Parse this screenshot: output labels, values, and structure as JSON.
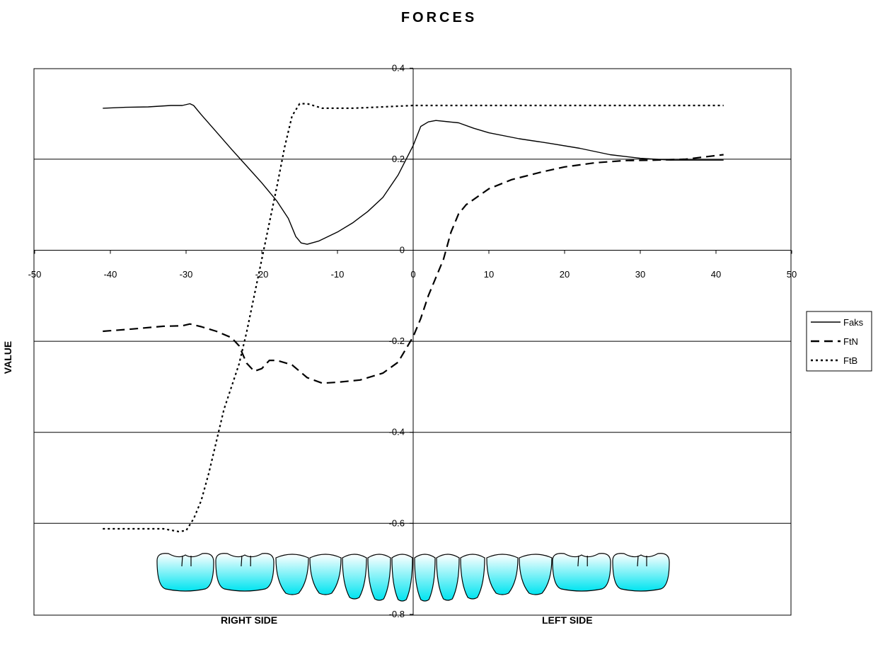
{
  "chart_data": {
    "type": "line",
    "title": "FORCES",
    "ylabel": "VALUE",
    "xlabel_left": "RIGHT SIDE",
    "xlabel_right": "LEFT SIDE",
    "xlim": [
      -50,
      50
    ],
    "ylim": [
      -0.8,
      0.4
    ],
    "xticks": [
      -50,
      -40,
      -30,
      -20,
      -10,
      0,
      10,
      20,
      30,
      40,
      50
    ],
    "yticks": [
      -0.8,
      -0.6,
      -0.4,
      -0.2,
      0,
      0.2,
      0.4
    ],
    "grid": "horizontal",
    "legend_position": "right",
    "series": [
      {
        "name": "Faks",
        "style": "solid",
        "color": "#000000",
        "points": [
          [
            -41,
            0.312
          ],
          [
            -38,
            0.314
          ],
          [
            -35,
            0.315
          ],
          [
            -32,
            0.318
          ],
          [
            -30.5,
            0.318
          ],
          [
            -29.5,
            0.322
          ],
          [
            -29,
            0.318
          ],
          [
            -28,
            0.298
          ],
          [
            -26,
            0.26
          ],
          [
            -24,
            0.222
          ],
          [
            -22,
            0.185
          ],
          [
            -20,
            0.148
          ],
          [
            -18,
            0.108
          ],
          [
            -16.5,
            0.07
          ],
          [
            -15.5,
            0.03
          ],
          [
            -14.8,
            0.016
          ],
          [
            -14,
            0.013
          ],
          [
            -12.5,
            0.02
          ],
          [
            -10,
            0.04
          ],
          [
            -8,
            0.06
          ],
          [
            -6,
            0.085
          ],
          [
            -4,
            0.116
          ],
          [
            -2,
            0.165
          ],
          [
            0,
            0.23
          ],
          [
            1,
            0.272
          ],
          [
            2,
            0.282
          ],
          [
            3,
            0.285
          ],
          [
            6,
            0.28
          ],
          [
            8,
            0.268
          ],
          [
            10,
            0.258
          ],
          [
            14,
            0.245
          ],
          [
            18,
            0.235
          ],
          [
            22,
            0.224
          ],
          [
            26,
            0.21
          ],
          [
            30,
            0.202
          ],
          [
            34,
            0.198
          ],
          [
            38,
            0.198
          ],
          [
            41,
            0.198
          ]
        ]
      },
      {
        "name": "FtN",
        "style": "dashed",
        "color": "#000000",
        "points": [
          [
            -41,
            -0.178
          ],
          [
            -37,
            -0.173
          ],
          [
            -33,
            -0.167
          ],
          [
            -30.5,
            -0.166
          ],
          [
            -29.5,
            -0.162
          ],
          [
            -28,
            -0.168
          ],
          [
            -26,
            -0.178
          ],
          [
            -24,
            -0.192
          ],
          [
            -23,
            -0.21
          ],
          [
            -22,
            -0.248
          ],
          [
            -21,
            -0.266
          ],
          [
            -20,
            -0.26
          ],
          [
            -19,
            -0.242
          ],
          [
            -18,
            -0.242
          ],
          [
            -16,
            -0.252
          ],
          [
            -14,
            -0.28
          ],
          [
            -12,
            -0.292
          ],
          [
            -10,
            -0.29
          ],
          [
            -7,
            -0.285
          ],
          [
            -4,
            -0.27
          ],
          [
            -2,
            -0.246
          ],
          [
            0,
            -0.19
          ],
          [
            1,
            -0.15
          ],
          [
            2,
            -0.1
          ],
          [
            3,
            -0.06
          ],
          [
            4,
            -0.02
          ],
          [
            5,
            0.04
          ],
          [
            6,
            0.08
          ],
          [
            7,
            0.1
          ],
          [
            10,
            0.135
          ],
          [
            13,
            0.155
          ],
          [
            17,
            0.172
          ],
          [
            20,
            0.183
          ],
          [
            24,
            0.192
          ],
          [
            28,
            0.197
          ],
          [
            32,
            0.198
          ],
          [
            36,
            0.2
          ],
          [
            41,
            0.21
          ]
        ]
      },
      {
        "name": "FtB",
        "style": "dotted",
        "color": "#000000",
        "points": [
          [
            -41,
            -0.612
          ],
          [
            -33,
            -0.612
          ],
          [
            -31,
            -0.618
          ],
          [
            -30,
            -0.616
          ],
          [
            -29,
            -0.59
          ],
          [
            -28,
            -0.55
          ],
          [
            -27,
            -0.49
          ],
          [
            -26,
            -0.42
          ],
          [
            -25,
            -0.35
          ],
          [
            -24,
            -0.3
          ],
          [
            -23,
            -0.25
          ],
          [
            -22,
            -0.18
          ],
          [
            -21,
            -0.1
          ],
          [
            -20,
            -0.02
          ],
          [
            -19,
            0.06
          ],
          [
            -18,
            0.14
          ],
          [
            -17,
            0.225
          ],
          [
            -16,
            0.295
          ],
          [
            -15,
            0.322
          ],
          [
            -14,
            0.322
          ],
          [
            -12,
            0.312
          ],
          [
            -8,
            0.312
          ],
          [
            -4,
            0.315
          ],
          [
            0,
            0.318
          ],
          [
            10,
            0.318
          ],
          [
            20,
            0.318
          ],
          [
            30,
            0.318
          ],
          [
            41,
            0.318
          ]
        ]
      }
    ],
    "decoration": "row of cyan teeth illustration along the bottom of the plot"
  },
  "colors": {
    "line": "#000000",
    "tooth_top": "#ffffff",
    "tooth_bottom": "#00e4f0"
  }
}
